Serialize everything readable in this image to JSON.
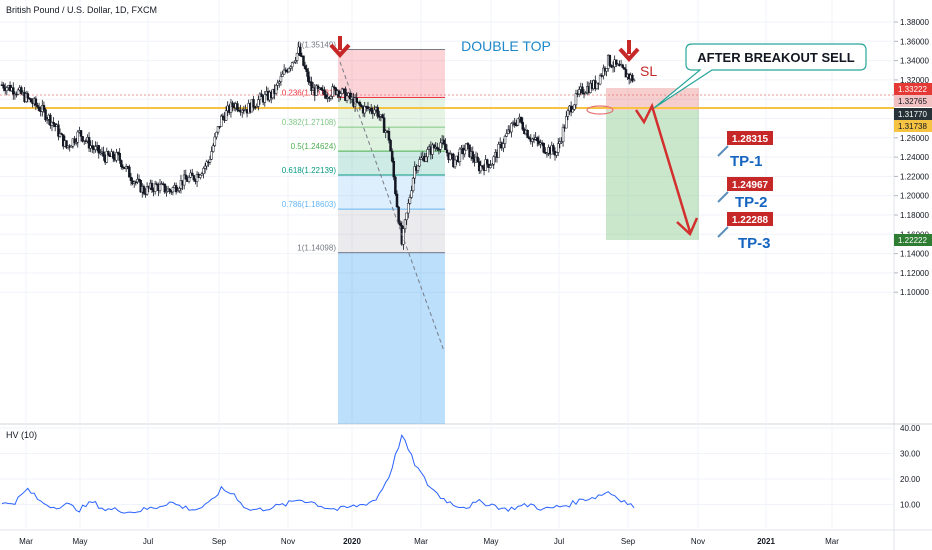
{
  "header": {
    "symbol_title": "British Pound / U.S. Dollar, 1D, FXCM"
  },
  "annotations": {
    "pattern": "DOUBLE TOP",
    "stop_loss": "SL",
    "callout": "AFTER BREAKOUT SELL",
    "targets": [
      {
        "label": "TP-1",
        "price": "1.28315"
      },
      {
        "label": "TP-2",
        "price": "1.24967"
      },
      {
        "label": "TP-3",
        "price": "1.22288"
      }
    ]
  },
  "price_axis": {
    "ticks": [
      "1.38000",
      "1.36000",
      "1.34000",
      "1.32000",
      "1.30000",
      "1.28000",
      "1.26000",
      "1.24000",
      "1.22000",
      "1.20000",
      "1.18000",
      "1.16000",
      "1.14000",
      "1.12000",
      "1.10000"
    ],
    "badges": [
      {
        "value": "1.33222",
        "color": "#e53935"
      },
      {
        "value": "1.32765",
        "color": "#f2c2c2"
      },
      {
        "value": "1.31770",
        "color": "#263238"
      },
      {
        "value": "1.31738",
        "color": "#f6c343"
      },
      {
        "value": "1.22222",
        "color": "#2e7d32"
      }
    ]
  },
  "fibonacci": {
    "levels": [
      {
        "label": "0(1.35149)",
        "price": 1.35149,
        "color": "#787b86"
      },
      {
        "label": "0.236(1.30181)",
        "price": 1.30181,
        "color": "#f23645"
      },
      {
        "label": "0.382(1.27108)",
        "price": 1.27108,
        "color": "#81c784"
      },
      {
        "label": "0.5(1.24624)",
        "price": 1.24624,
        "color": "#4caf50"
      },
      {
        "label": "0.618(1.22139)",
        "price": 1.22139,
        "color": "#089981"
      },
      {
        "label": "0.786(1.18603)",
        "price": 1.18603,
        "color": "#64b5f6"
      },
      {
        "label": "1(1.14098)",
        "price": 1.14098,
        "color": "#787b86"
      }
    ]
  },
  "indicator": {
    "name": "HV (10)",
    "ticks": [
      "40.00",
      "30.00",
      "20.00",
      "10.00"
    ]
  },
  "time_axis": {
    "labels": [
      "Mar",
      "May",
      "Jul",
      "Sep",
      "Nov",
      "2020",
      "Mar",
      "May",
      "Jul",
      "Sep",
      "Nov",
      "2021",
      "Mar"
    ]
  },
  "chart_data": {
    "type": "candlestick",
    "title": "British Pound / U.S. Dollar, 1D, FXCM",
    "ylim": [
      1.09,
      1.39
    ],
    "x_range": [
      "2019-02",
      "2021-04"
    ],
    "series": [
      {
        "name": "GBP/USD",
        "approx_closes": [
          1.315,
          1.31,
          1.3,
          1.29,
          1.275,
          1.25,
          1.265,
          1.25,
          1.24,
          1.24,
          1.22,
          1.205,
          1.21,
          1.205,
          1.215,
          1.22,
          1.235,
          1.28,
          1.295,
          1.29,
          1.3,
          1.305,
          1.33,
          1.35,
          1.31,
          1.305,
          1.31,
          1.3,
          1.29,
          1.29,
          1.26,
          1.15,
          1.23,
          1.245,
          1.255,
          1.235,
          1.25,
          1.23,
          1.235,
          1.26,
          1.28,
          1.26,
          1.25,
          1.245,
          1.29,
          1.31,
          1.315,
          1.34,
          1.33,
          1.32
        ]
      },
      {
        "name": "HV (10)",
        "approx_values": [
          10,
          11,
          16,
          11,
          9,
          10,
          8,
          11,
          8,
          8,
          7,
          8,
          9,
          11,
          9,
          8,
          10,
          16,
          14,
          8,
          8,
          9,
          10,
          12,
          11,
          9,
          8,
          9,
          10,
          12,
          21,
          37,
          26,
          18,
          13,
          10,
          9,
          11,
          10,
          8,
          9,
          10,
          8,
          9,
          10,
          12,
          13,
          15,
          12,
          9
        ]
      }
    ],
    "horizontal_levels": [
      {
        "name": "neckline",
        "value": 1.3174,
        "color": "#f6c343"
      }
    ]
  }
}
